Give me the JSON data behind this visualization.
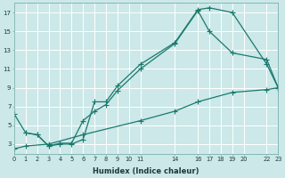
{
  "xlabel": "Humidex (Indice chaleur)",
  "bg_color": "#cce8e8",
  "grid_color": "#ffffff",
  "line_color": "#1a7a6e",
  "xlim": [
    0,
    23
  ],
  "ylim": [
    2,
    18
  ],
  "xticks": [
    0,
    1,
    2,
    3,
    4,
    5,
    6,
    7,
    8,
    9,
    10,
    11,
    14,
    16,
    17,
    18,
    19,
    20,
    22,
    23
  ],
  "xtick_labels": [
    "0",
    "1",
    "2",
    "3",
    "4",
    "5",
    "6",
    "7",
    "8",
    "9",
    "10",
    "11",
    "14",
    "16",
    "17",
    "18",
    "19",
    "20",
    "22",
    "23"
  ],
  "yticks": [
    3,
    5,
    7,
    9,
    11,
    13,
    15,
    17
  ],
  "line1": {
    "x": [
      0,
      1,
      2,
      3,
      4,
      5,
      6,
      7,
      8,
      9,
      11,
      14,
      16,
      17,
      19,
      22,
      23
    ],
    "y": [
      6.2,
      4.2,
      4.0,
      2.8,
      3.0,
      3.0,
      3.5,
      7.5,
      7.5,
      9.2,
      11.5,
      13.8,
      17.3,
      17.5,
      17.0,
      11.5,
      9.0
    ]
  },
  "line2": {
    "x": [
      1,
      2,
      3,
      4,
      5,
      6,
      7,
      8,
      9,
      11,
      14,
      16,
      17,
      19,
      22,
      23
    ],
    "y": [
      4.2,
      4.0,
      2.8,
      3.1,
      3.1,
      5.5,
      6.5,
      7.2,
      8.7,
      11.0,
      13.7,
      17.2,
      15.0,
      12.7,
      12.0,
      9.0
    ]
  },
  "line3": {
    "x": [
      0,
      1,
      3,
      6,
      11,
      14,
      16,
      19,
      22,
      23
    ],
    "y": [
      2.5,
      2.8,
      3.0,
      4.0,
      5.5,
      6.5,
      7.5,
      8.5,
      8.8,
      9.0
    ]
  }
}
